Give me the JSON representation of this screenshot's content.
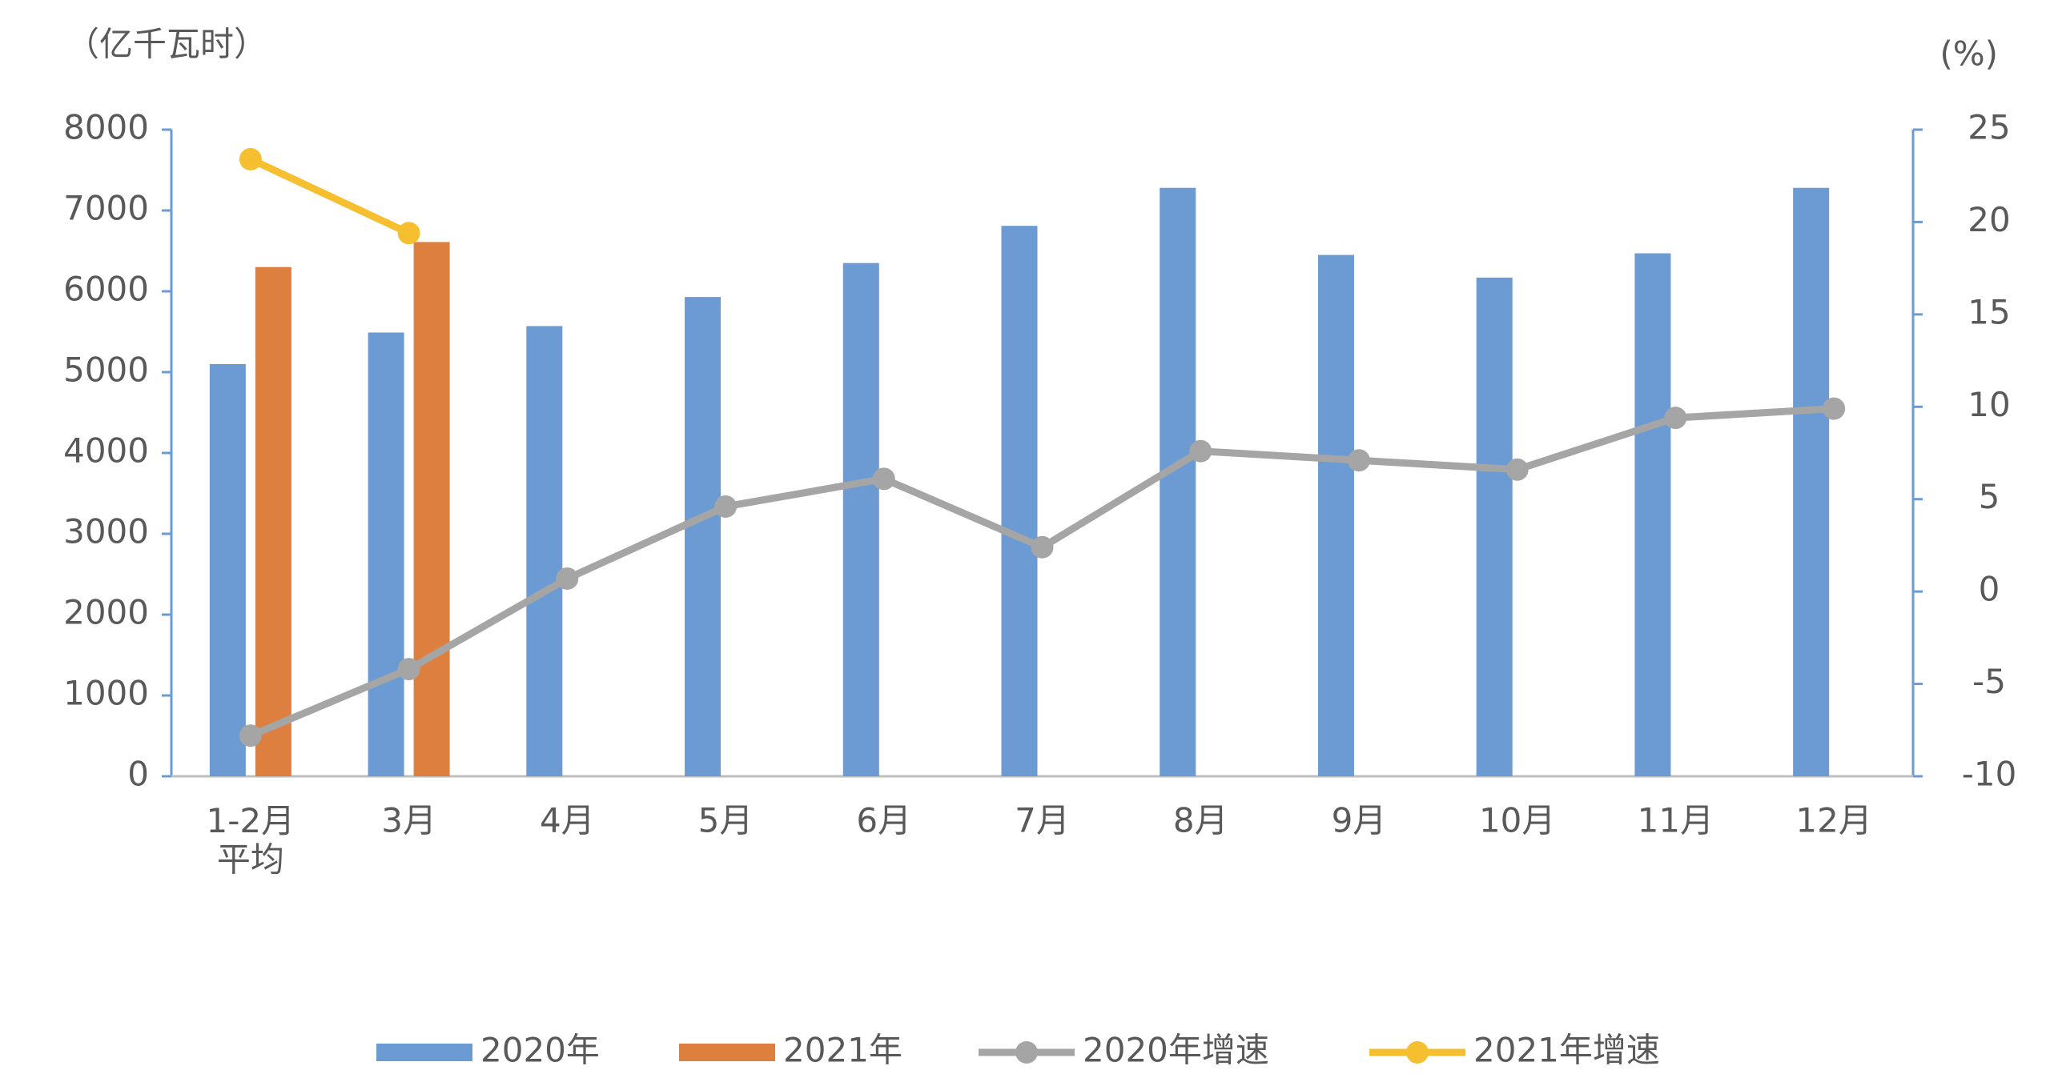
{
  "chart_data": {
    "type": "bar",
    "y_unit": "（亿千瓦时）",
    "y2_unit": "(%)",
    "categories": [
      "1-2月\n平均",
      "3月",
      "4月",
      "5月",
      "6月",
      "7月",
      "8月",
      "9月",
      "10月",
      "11月",
      "12月"
    ],
    "ylim": [
      0,
      8000
    ],
    "yticks": [
      0,
      1000,
      2000,
      3000,
      4000,
      5000,
      6000,
      7000,
      8000
    ],
    "y2lim": [
      -10,
      25
    ],
    "y2ticks": [
      -10,
      -5,
      0,
      5,
      10,
      15,
      20,
      25
    ],
    "series": [
      {
        "name": "2020年",
        "type": "bar",
        "color": "#6b9bd2",
        "values": [
          5100,
          5490,
          5570,
          5930,
          6350,
          6810,
          7280,
          6450,
          6170,
          6470,
          7280
        ]
      },
      {
        "name": "2021年",
        "type": "bar",
        "color": "#dd7f3f",
        "values": [
          6300,
          6610,
          null,
          null,
          null,
          null,
          null,
          null,
          null,
          null,
          null
        ]
      },
      {
        "name": "2020年增速",
        "type": "line",
        "axis": "y2",
        "color": "#a5a5a5",
        "values": [
          -7.8,
          -4.2,
          0.7,
          4.6,
          6.1,
          2.4,
          7.6,
          7.1,
          6.6,
          9.4,
          9.9
        ]
      },
      {
        "name": "2021年增速",
        "type": "line",
        "axis": "y2",
        "color": "#f5bf2f",
        "values": [
          23.4,
          19.4,
          null,
          null,
          null,
          null,
          null,
          null,
          null,
          null,
          null
        ]
      }
    ]
  }
}
